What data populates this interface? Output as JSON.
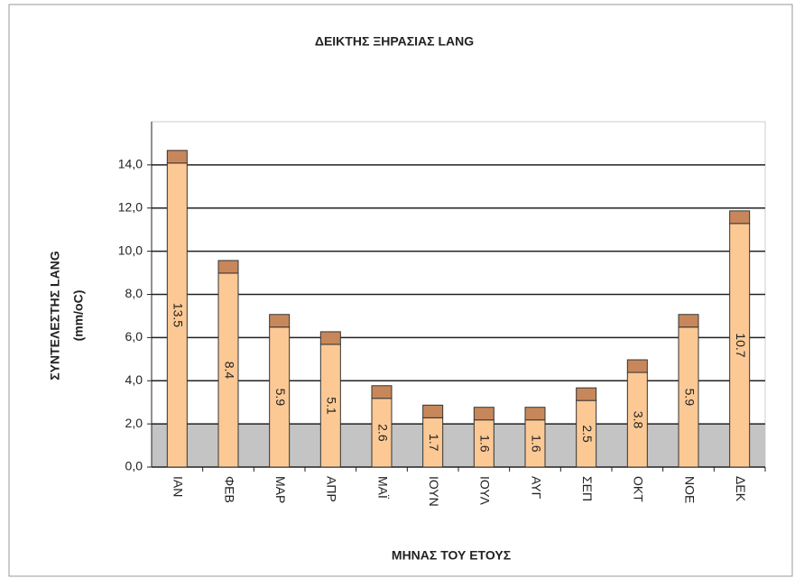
{
  "chart_data": {
    "type": "bar",
    "title": "ΔΕΙΚΤΗΣ ΞΗΡΑΣΙΑΣ LANG",
    "ylabel": "ΣΥΝΤΕΛΕΣΤΗΣ LANG",
    "ylabel_unit": "(mm/oC)",
    "xlabel": "ΜΗΝΑΣ ΤΟΥ ΕΤΟΥΣ",
    "categories": [
      "ΙΑΝ",
      "ΦΕΒ",
      "ΜΑΡ",
      "ΑΠΡ",
      "ΜΑΪ",
      "ΙΟΥΝ",
      "ΙΟΥΛ",
      "ΑΥΓ",
      "ΣΕΠ",
      "ΟΚΤ",
      "ΝΟΕ",
      "ΔΕΚ"
    ],
    "values": [
      13.5,
      8.4,
      5.9,
      5.1,
      2.6,
      1.7,
      1.6,
      1.6,
      2.5,
      3.8,
      5.9,
      10.7
    ],
    "color": "#fcc995",
    "cap_color": "#c8875a",
    "ylim": [
      0,
      16
    ],
    "yticks": [
      {
        "value": 0,
        "label": "0,0"
      },
      {
        "value": 2,
        "label": "2,0"
      },
      {
        "value": 4,
        "label": "4,0"
      },
      {
        "value": 6,
        "label": "6,0"
      },
      {
        "value": 8,
        "label": "8,0"
      },
      {
        "value": 10,
        "label": "10,0"
      },
      {
        "value": 12,
        "label": "12,0"
      },
      {
        "value": 14,
        "label": "14,0"
      }
    ],
    "grid": true,
    "shade_below": 2
  }
}
